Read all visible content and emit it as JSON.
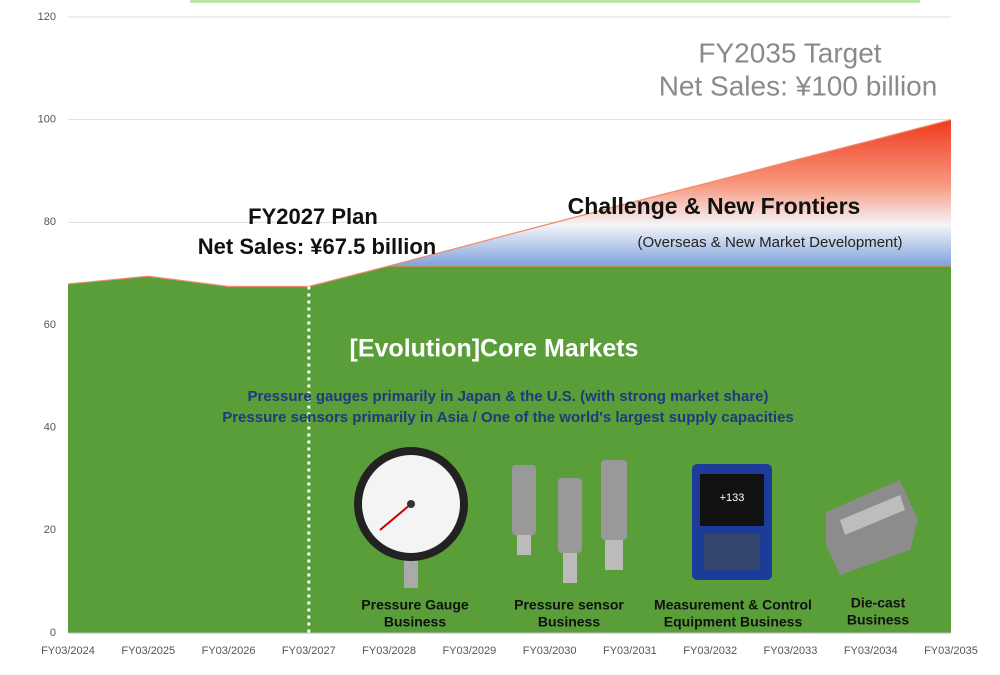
{
  "chart_data": {
    "type": "area",
    "categories": [
      "FY03/2024",
      "FY03/2025",
      "FY03/2026",
      "FY03/2027",
      "FY03/2028",
      "FY03/2029",
      "FY03/2030",
      "FY03/2031",
      "FY03/2032",
      "FY03/2033",
      "FY03/2034",
      "FY03/2035"
    ],
    "series": [
      {
        "name": "[Evolution]Core Markets",
        "color": "#5a9e3a",
        "values": [
          68,
          69.5,
          67.5,
          67.5,
          71.5,
          71.5,
          71.5,
          71.5,
          71.5,
          71.5,
          71.5,
          71.5
        ]
      },
      {
        "name": "Challenge & New Frontiers",
        "color": "#f04a2a",
        "values": [
          null,
          null,
          null,
          null,
          0,
          4.1,
          8.2,
          12.3,
          16.3,
          20.4,
          24.4,
          28.5
        ]
      }
    ],
    "stacked": true,
    "ylim": [
      0,
      120
    ],
    "yticks": [
      0,
      20,
      40,
      60,
      80,
      100,
      120
    ],
    "grid": true,
    "annotations": {
      "plan_title": "FY2027 Plan",
      "plan_sales": "Net Sales: ¥67.5 billion",
      "target_title": "FY2035 Target",
      "target_sales": "Net Sales: ¥100 billion",
      "challenge_sub": "(Overseas & New Market Development)",
      "core_line1": "Pressure gauges primarily in Japan & the U.S. (with strong market share)",
      "core_line2": "Pressure sensors primarily in Asia / One of the world's largest supply capacities"
    },
    "businesses": [
      [
        "Pressure Gauge",
        "Business"
      ],
      [
        "Pressure sensor",
        "Business"
      ],
      [
        "Measurement & Control",
        "Equipment Business"
      ],
      [
        "Die-cast",
        "Business"
      ]
    ]
  }
}
